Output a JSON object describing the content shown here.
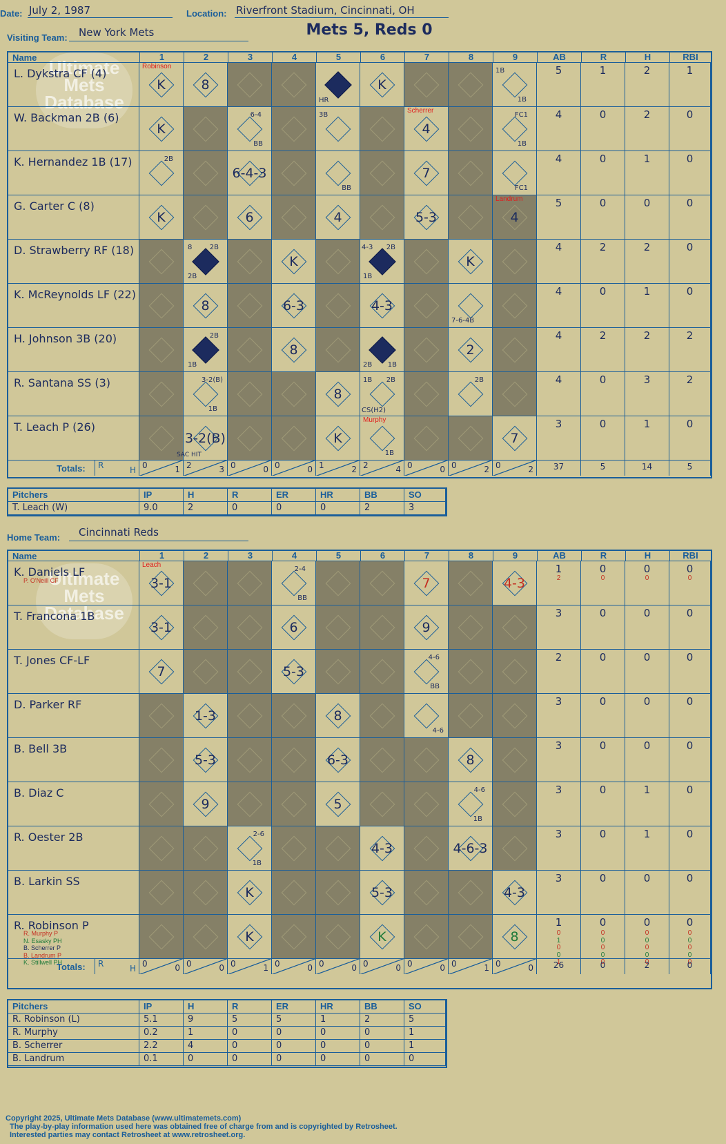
{
  "header": {
    "date_label": "Date:",
    "date": "July 2, 1987",
    "location_label": "Location:",
    "location": "Riverfront Stadium, Cincinnati, OH",
    "visiting_label": "Visiting Team:",
    "visiting_team": "New York Mets",
    "home_label": "Home Team:",
    "home_team": "Cincinnati Reds",
    "result": "Mets 5, Reds 0"
  },
  "grid_headers": {
    "name": "Name",
    "innings": [
      "1",
      "2",
      "3",
      "4",
      "5",
      "6",
      "7",
      "8",
      "9"
    ],
    "stats": [
      "AB",
      "R",
      "H",
      "RBI"
    ],
    "totals": "Totals:",
    "tot_r": "R",
    "tot_h": "H"
  },
  "watermark": {
    "text": "Ultimate Mets Database",
    "url": "ultimatemets.com"
  },
  "visitors": {
    "players": [
      {
        "name": "L. Dykstra CF (4)",
        "stats": [
          "5",
          "1",
          "2",
          "1"
        ]
      },
      {
        "name": "W. Backman 2B (6)",
        "stats": [
          "4",
          "0",
          "2",
          "0"
        ]
      },
      {
        "name": "K. Hernandez 1B (17)",
        "stats": [
          "4",
          "0",
          "1",
          "0"
        ]
      },
      {
        "name": "G. Carter C (8)",
        "stats": [
          "5",
          "0",
          "0",
          "0"
        ]
      },
      {
        "name": "D. Strawberry RF (18)",
        "stats": [
          "4",
          "2",
          "2",
          "0"
        ]
      },
      {
        "name": "K. McReynolds LF (22)",
        "stats": [
          "4",
          "0",
          "1",
          "0"
        ]
      },
      {
        "name": "H. Johnson 3B (20)",
        "stats": [
          "4",
          "2",
          "2",
          "2"
        ]
      },
      {
        "name": "R. Santana SS (3)",
        "stats": [
          "4",
          "0",
          "3",
          "2"
        ]
      },
      {
        "name": "T. Leach P (26)",
        "stats": [
          "3",
          "0",
          "1",
          "0"
        ]
      }
    ],
    "pitcher_changes": [
      "Robinson",
      "Scherrer",
      "Landrum",
      "Murphy"
    ],
    "totals": [
      [
        "0",
        "1"
      ],
      [
        "2",
        "3"
      ],
      [
        "0",
        "0"
      ],
      [
        "0",
        "0"
      ],
      [
        "1",
        "2"
      ],
      [
        "2",
        "4"
      ],
      [
        "0",
        "0"
      ],
      [
        "0",
        "2"
      ],
      [
        "0",
        "2"
      ]
    ],
    "stat_totals": [
      "37",
      "5",
      "14",
      "5"
    ],
    "marks": {
      "dykstra": [
        "K",
        "8",
        "HR",
        "K",
        "1B",
        "1B"
      ],
      "backman": [
        "K",
        "6-4",
        "BB",
        "3B",
        "4",
        "FC1",
        "1B"
      ],
      "hernandez": [
        "2B",
        "6-4-3",
        "BB",
        "7",
        "FC1"
      ],
      "carter": [
        "K",
        "6",
        "4",
        "5-3",
        "4"
      ],
      "strawberry": [
        "8",
        "2B",
        "2B",
        "K",
        "4-3",
        "2B",
        "1B",
        "K"
      ],
      "mcreynolds": [
        "8",
        "6-3",
        "4-3",
        "7-6-4B"
      ],
      "johnson": [
        "2B",
        "1B",
        "8",
        "2B",
        "1B",
        "2"
      ],
      "santana": [
        "3-2(B)",
        "1B",
        "8",
        "1B",
        "2B",
        "CS(H2)",
        "2B"
      ],
      "leach": [
        "3-2(B)",
        "SAC HIT",
        "K",
        "1B",
        "7"
      ]
    }
  },
  "visitor_pitching": {
    "headers": [
      "Pitchers",
      "IP",
      "H",
      "R",
      "ER",
      "HR",
      "BB",
      "SO"
    ],
    "rows": [
      [
        "T. Leach (W)",
        "9.0",
        "2",
        "0",
        "0",
        "0",
        "2",
        "3"
      ]
    ]
  },
  "home": {
    "players": [
      {
        "name": "K. Daniels LF",
        "stats": [
          "1",
          "0",
          "0",
          "0"
        ],
        "sub": "P. O'Neill CF",
        "sub_stats": [
          "2",
          "0",
          "0",
          "0"
        ]
      },
      {
        "name": "T. Francona 1B",
        "stats": [
          "3",
          "0",
          "0",
          "0"
        ]
      },
      {
        "name": "T. Jones CF-LF",
        "stats": [
          "2",
          "0",
          "0",
          "0"
        ]
      },
      {
        "name": "D. Parker RF",
        "stats": [
          "3",
          "0",
          "0",
          "0"
        ]
      },
      {
        "name": "B. Bell 3B",
        "stats": [
          "3",
          "0",
          "0",
          "0"
        ]
      },
      {
        "name": "B. Diaz C",
        "stats": [
          "3",
          "0",
          "1",
          "0"
        ]
      },
      {
        "name": "R. Oester 2B",
        "stats": [
          "3",
          "0",
          "1",
          "0"
        ]
      },
      {
        "name": "B. Larkin SS",
        "stats": [
          "3",
          "0",
          "0",
          "0"
        ]
      },
      {
        "name": "R. Robinson P",
        "stats": [
          "1",
          "0",
          "0",
          "0"
        ]
      }
    ],
    "robinson_subs": [
      {
        "name": "R. Murphy P",
        "stats": [
          "0",
          "0",
          "0",
          "0"
        ]
      },
      {
        "name": "N. Esasky PH",
        "stats": [
          "1",
          "0",
          "0",
          "0"
        ]
      },
      {
        "name": "B. Scherrer P",
        "stats": [
          "0",
          "0",
          "0",
          "0"
        ]
      },
      {
        "name": "B. Landrum P",
        "stats": [
          "0",
          "0",
          "0",
          "0"
        ]
      },
      {
        "name": "K. Stillwell PH",
        "stats": [
          "1",
          "0",
          "0",
          "0"
        ]
      }
    ],
    "pitcher_change": "Leach",
    "totals": [
      [
        "0",
        "0"
      ],
      [
        "0",
        "0"
      ],
      [
        "0",
        "1"
      ],
      [
        "0",
        "0"
      ],
      [
        "0",
        "0"
      ],
      [
        "0",
        "0"
      ],
      [
        "0",
        "0"
      ],
      [
        "0",
        "1"
      ],
      [
        "0",
        "0"
      ]
    ],
    "stat_totals": [
      "26",
      "0",
      "2",
      "0"
    ],
    "marks": {
      "daniels": [
        "3-1",
        "2-4",
        "BB",
        "7",
        "4-3"
      ],
      "francona": [
        "3-1",
        "6",
        "9"
      ],
      "jones": [
        "7",
        "5-3",
        "4-6",
        "BB"
      ],
      "parker": [
        "1-3",
        "8",
        "4-6"
      ],
      "bell": [
        "5-3",
        "6-3",
        "8"
      ],
      "diaz": [
        "9",
        "5",
        "4-6",
        "1B"
      ],
      "oester": [
        "2-6",
        "1B",
        "4-3",
        "4-6-3"
      ],
      "larkin": [
        "K",
        "5-3",
        "4-3"
      ],
      "robinson": [
        "K",
        "K",
        "8"
      ]
    }
  },
  "home_pitching": {
    "headers": [
      "Pitchers",
      "IP",
      "H",
      "R",
      "ER",
      "HR",
      "BB",
      "SO"
    ],
    "rows": [
      [
        "R. Robinson (L)",
        "5.1",
        "9",
        "5",
        "5",
        "1",
        "2",
        "5"
      ],
      [
        "R. Murphy",
        "0.2",
        "1",
        "0",
        "0",
        "0",
        "0",
        "1"
      ],
      [
        "B. Scherrer",
        "2.2",
        "4",
        "0",
        "0",
        "0",
        "0",
        "1"
      ],
      [
        "B. Landrum",
        "0.1",
        "0",
        "0",
        "0",
        "0",
        "0",
        "0"
      ]
    ]
  },
  "footer": {
    "copyright": "Copyright 2025, Ultimate Mets Database (www.ultimatemets.com)",
    "line2": "The play-by-play information used here was obtained free of charge from and is copyrighted by Retrosheet.",
    "line3": "Interested parties may contact Retrosheet at www.retrosheet.org."
  }
}
